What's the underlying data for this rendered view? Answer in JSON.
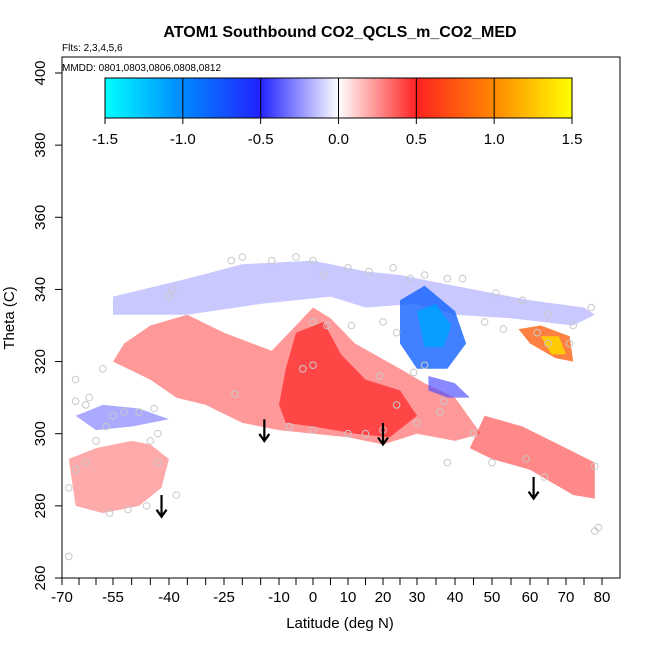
{
  "chart_data": {
    "type": "heatmap",
    "title": "ATOM1 Southbound CO2_QCLS_m_CO2_MED",
    "flights_label": "Flts: 2,3,4,5,6",
    "dates_label": "MMDD: 0801,0803,0806,0808,0812",
    "xlabel": "Latitude (deg N)",
    "ylabel": "Theta (C)",
    "xlim": [
      -70,
      82
    ],
    "ylim": [
      260,
      405
    ],
    "x_ticks": [
      -70,
      -55,
      -40,
      -25,
      -10,
      0,
      10,
      20,
      30,
      40,
      50,
      60,
      70,
      80
    ],
    "x_tick_labels": [
      "-70",
      "-55",
      "-40",
      "-25",
      "-10",
      "0",
      "10",
      "20",
      "30",
      "40",
      "50",
      "60",
      "70",
      "80"
    ],
    "x_minor_ticks": [
      -65,
      -60,
      -50,
      -45,
      -35,
      -30,
      -20,
      -15,
      -5,
      5,
      15,
      25,
      35,
      45,
      55,
      65,
      75
    ],
    "y_ticks": [
      260,
      280,
      300,
      320,
      340,
      360,
      380,
      400
    ],
    "y_tick_labels": [
      "260",
      "280",
      "300",
      "320",
      "340",
      "360",
      "380",
      "400"
    ],
    "colorbar": {
      "range": [
        -1.5,
        1.5
      ],
      "ticks": [
        -1.5,
        -1.0,
        -0.5,
        0.0,
        0.5,
        1.0,
        1.5
      ],
      "tick_labels": [
        "-1.5",
        "-1.0",
        "-0.5",
        "0.0",
        "0.5",
        "1.0",
        "1.5"
      ],
      "stops": [
        {
          "v": -1.5,
          "color": "#00ffff"
        },
        {
          "v": -1.0,
          "color": "#0088ff"
        },
        {
          "v": -0.5,
          "color": "#2222ff"
        },
        {
          "v": 0.0,
          "color": "#ffffff"
        },
        {
          "v": 0.5,
          "color": "#ff2222"
        },
        {
          "v": 1.0,
          "color": "#ff8800"
        },
        {
          "v": 1.5,
          "color": "#ffff00"
        }
      ]
    },
    "fields": [
      {
        "name": "upper-blue-band",
        "value": -0.2,
        "polygon": [
          [
            -55,
            338
          ],
          [
            -35,
            343
          ],
          [
            -20,
            347
          ],
          [
            0,
            348
          ],
          [
            15,
            345
          ],
          [
            25,
            344
          ],
          [
            35,
            342
          ],
          [
            50,
            339
          ],
          [
            60,
            337
          ],
          [
            75,
            335
          ],
          [
            78,
            333
          ],
          [
            72,
            330
          ],
          [
            55,
            332
          ],
          [
            40,
            333
          ],
          [
            30,
            336
          ],
          [
            15,
            335
          ],
          [
            5,
            338
          ],
          [
            -15,
            336
          ],
          [
            -35,
            333
          ],
          [
            -55,
            333
          ]
        ]
      },
      {
        "name": "main-red-band",
        "value": 0.35,
        "polygon": [
          [
            -52,
            325
          ],
          [
            -45,
            330
          ],
          [
            -35,
            333
          ],
          [
            -25,
            328
          ],
          [
            -12,
            323
          ],
          [
            -5,
            330
          ],
          [
            0,
            335
          ],
          [
            5,
            332
          ],
          [
            12,
            325
          ],
          [
            25,
            318
          ],
          [
            32,
            314
          ],
          [
            40,
            310
          ],
          [
            47,
            300
          ],
          [
            40,
            298
          ],
          [
            30,
            300
          ],
          [
            20,
            297
          ],
          [
            10,
            299
          ],
          [
            0,
            300
          ],
          [
            -10,
            301
          ],
          [
            -20,
            303
          ],
          [
            -30,
            308
          ],
          [
            -38,
            310
          ],
          [
            -45,
            315
          ],
          [
            -55,
            320
          ]
        ]
      },
      {
        "name": "core-red",
        "value": 0.5,
        "polygon": [
          [
            -5,
            328
          ],
          [
            3,
            331
          ],
          [
            8,
            322
          ],
          [
            15,
            315
          ],
          [
            25,
            312
          ],
          [
            30,
            305
          ],
          [
            22,
            299
          ],
          [
            12,
            300
          ],
          [
            0,
            302
          ],
          [
            -8,
            303
          ],
          [
            -10,
            308
          ],
          [
            -8,
            318
          ]
        ]
      },
      {
        "name": "northern-red-lower",
        "value": 0.4,
        "polygon": [
          [
            48,
            305
          ],
          [
            58,
            302
          ],
          [
            70,
            296
          ],
          [
            78,
            292
          ],
          [
            78,
            282
          ],
          [
            72,
            283
          ],
          [
            60,
            290
          ],
          [
            50,
            293
          ],
          [
            44,
            296
          ]
        ]
      },
      {
        "name": "southern-red-patch",
        "value": 0.3,
        "polygon": [
          [
            -68,
            293
          ],
          [
            -60,
            296
          ],
          [
            -50,
            298
          ],
          [
            -45,
            297
          ],
          [
            -40,
            293
          ],
          [
            -42,
            285
          ],
          [
            -48,
            280
          ],
          [
            -58,
            278
          ],
          [
            -66,
            280
          ]
        ]
      },
      {
        "name": "mid-blue-patch",
        "value": -0.8,
        "polygon": [
          [
            25,
            337
          ],
          [
            32,
            341
          ],
          [
            40,
            334
          ],
          [
            43,
            325
          ],
          [
            38,
            318
          ],
          [
            30,
            318
          ],
          [
            25,
            325
          ]
        ]
      },
      {
        "name": "mid-blue-core",
        "value": -1.1,
        "polygon": [
          [
            30,
            334
          ],
          [
            35,
            336
          ],
          [
            39,
            330
          ],
          [
            37,
            324
          ],
          [
            32,
            324
          ]
        ]
      },
      {
        "name": "low-blue-streak",
        "value": -0.4,
        "polygon": [
          [
            33,
            316
          ],
          [
            40,
            314
          ],
          [
            44,
            310
          ],
          [
            38,
            310
          ],
          [
            33,
            312
          ]
        ]
      },
      {
        "name": "southern-blue-wisp",
        "value": -0.3,
        "polygon": [
          [
            -66,
            305
          ],
          [
            -58,
            308
          ],
          [
            -48,
            307
          ],
          [
            -40,
            304
          ],
          [
            -50,
            302
          ],
          [
            -60,
            301
          ]
        ]
      },
      {
        "name": "northern-hotspot",
        "value": 0.8,
        "polygon": [
          [
            57,
            329
          ],
          [
            63,
            330
          ],
          [
            71,
            327
          ],
          [
            72,
            320
          ],
          [
            67,
            321
          ],
          [
            60,
            325
          ]
        ]
      },
      {
        "name": "northern-hotspot-core",
        "value": 1.3,
        "polygon": [
          [
            63,
            327
          ],
          [
            68,
            327
          ],
          [
            70,
            322
          ],
          [
            66,
            322
          ]
        ]
      }
    ],
    "sample_points": [
      [
        -68,
        266
      ],
      [
        -68,
        285
      ],
      [
        -66,
        290
      ],
      [
        -63,
        292
      ],
      [
        -60,
        298
      ],
      [
        -57,
        302
      ],
      [
        -55,
        305
      ],
      [
        -52,
        306
      ],
      [
        -48,
        306
      ],
      [
        -44,
        307
      ],
      [
        -45,
        298
      ],
      [
        -43,
        292
      ],
      [
        -38,
        283
      ],
      [
        -46,
        280
      ],
      [
        -51,
        279
      ],
      [
        -56,
        278
      ],
      [
        -66,
        309
      ],
      [
        -63,
        308
      ],
      [
        -40,
        338
      ],
      [
        -39,
        340
      ],
      [
        -23,
        348
      ],
      [
        -20,
        349
      ],
      [
        -12,
        348
      ],
      [
        -5,
        349
      ],
      [
        0,
        348
      ],
      [
        3,
        344
      ],
      [
        10,
        346
      ],
      [
        16,
        345
      ],
      [
        23,
        346
      ],
      [
        28,
        343
      ],
      [
        32,
        344
      ],
      [
        38,
        343
      ],
      [
        42,
        343
      ],
      [
        51,
        339
      ],
      [
        58,
        337
      ],
      [
        65,
        333
      ],
      [
        77,
        335
      ],
      [
        -3,
        318
      ],
      [
        0,
        319
      ],
      [
        0,
        331
      ],
      [
        4,
        330
      ],
      [
        11,
        330
      ],
      [
        20,
        331
      ],
      [
        24,
        328
      ],
      [
        29,
        317
      ],
      [
        37,
        309
      ],
      [
        45,
        300
      ],
      [
        36,
        306
      ],
      [
        30,
        303
      ],
      [
        20,
        301
      ],
      [
        15,
        300
      ],
      [
        10,
        300
      ],
      [
        0,
        301
      ],
      [
        -7,
        302
      ],
      [
        -22,
        311
      ],
      [
        19,
        316
      ],
      [
        24,
        308
      ],
      [
        38,
        292
      ],
      [
        50,
        292
      ],
      [
        59,
        293
      ],
      [
        64,
        288
      ],
      [
        78,
        273
      ],
      [
        79,
        274
      ],
      [
        78,
        291
      ],
      [
        72,
        330
      ],
      [
        71,
        325
      ],
      [
        62,
        328
      ],
      [
        65,
        325
      ],
      [
        53,
        329
      ],
      [
        48,
        331
      ],
      [
        32,
        319
      ],
      [
        -58,
        318
      ],
      [
        -66,
        315
      ],
      [
        -62,
        310
      ],
      [
        -43,
        300
      ]
    ],
    "arrows": [
      {
        "lat": -42,
        "theta": 283,
        "length": 6
      },
      {
        "lat": -14,
        "theta": 304,
        "length": 6
      },
      {
        "lat": 20,
        "theta": 303,
        "length": 6
      },
      {
        "lat": 61,
        "theta": 288,
        "length": 6
      }
    ]
  }
}
